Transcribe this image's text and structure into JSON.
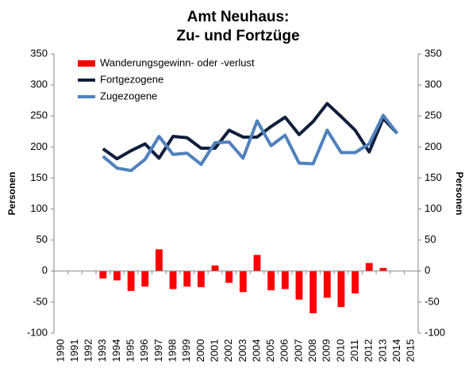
{
  "chart_data": {
    "type": "bar-line",
    "title": [
      "Amt Neuhaus:",
      "Zu- und Fortzüge"
    ],
    "ylabel": "Personen",
    "y2label": "Personen",
    "categories": [
      "1990",
      "1991",
      "1992",
      "1993",
      "1994",
      "1995",
      "1996",
      "1997",
      "1998",
      "1999",
      "2000",
      "2001",
      "2002",
      "2003",
      "2004",
      "2005",
      "2006",
      "2007",
      "2008",
      "2009",
      "2010",
      "2011",
      "2012",
      "2013",
      "2014",
      "2015"
    ],
    "series": [
      {
        "name": "Wanderungsgewinn- oder -verlust",
        "type": "bar",
        "color": "#ff0000",
        "values": [
          null,
          null,
          null,
          -12,
          -15,
          -32,
          -25,
          35,
          -29,
          -25,
          -26,
          9,
          -19,
          -34,
          26,
          -31,
          -29,
          -46,
          -68,
          -43,
          -58,
          -36,
          13,
          5,
          0,
          null
        ]
      },
      {
        "name": "Fortgezogene",
        "type": "line",
        "color": "#0f1e3c",
        "values": [
          null,
          null,
          null,
          197,
          181,
          194,
          205,
          182,
          217,
          215,
          198,
          198,
          227,
          216,
          216,
          233,
          248,
          220,
          241,
          270,
          249,
          227,
          192,
          246,
          222,
          null
        ]
      },
      {
        "name": "Zugezogene",
        "type": "line",
        "color": "#4f81bd",
        "values": [
          null,
          null,
          null,
          185,
          166,
          162,
          180,
          217,
          188,
          190,
          172,
          207,
          208,
          182,
          242,
          202,
          219,
          174,
          173,
          227,
          191,
          191,
          205,
          251,
          222,
          null
        ]
      }
    ],
    "ylim": [
      -100,
      350
    ],
    "yticks": [
      -100,
      -50,
      0,
      50,
      100,
      150,
      200,
      250,
      300,
      350
    ],
    "y2lim": [
      -100,
      350
    ],
    "y2ticks": [
      -100,
      -50,
      0,
      50,
      100,
      150,
      200,
      250,
      300,
      350
    ],
    "legend": "upper left"
  }
}
